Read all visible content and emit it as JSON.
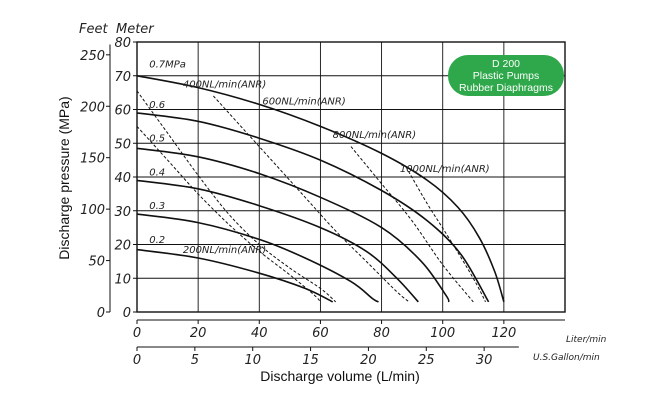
{
  "chart_data": {
    "type": "line",
    "xlabel": "Discharge volume (L/min)",
    "ylabel": "Discharge pressure (MPa)",
    "badge": {
      "lines": [
        "D 200",
        "Plastic Pumps",
        "Rubber Diaphragms"
      ],
      "color": "#2ea84a"
    },
    "axes": {
      "meter": {
        "title": "Meter",
        "ticks": [
          0,
          10,
          20,
          30,
          40,
          50,
          60,
          70,
          80
        ]
      },
      "feet": {
        "title": "Feet",
        "ticks": [
          0,
          50,
          100,
          150,
          200,
          250
        ]
      },
      "liter": {
        "unit": "Liter/min",
        "ticks": [
          0,
          20,
          40,
          60,
          80,
          100,
          120
        ]
      },
      "gallon": {
        "unit": "U.S.Gallon/min",
        "ticks": [
          0,
          5,
          10,
          15,
          20,
          25,
          30
        ]
      }
    },
    "xlim": [
      0,
      140
    ],
    "ylim": [
      0,
      80
    ],
    "grid": true,
    "pressure_curves": [
      {
        "label": "0.7MPa",
        "points": [
          [
            0,
            70
          ],
          [
            20,
            66.5
          ],
          [
            40,
            61.5
          ],
          [
            60,
            55
          ],
          [
            80,
            47
          ],
          [
            95,
            39
          ],
          [
            105,
            31
          ],
          [
            112,
            22
          ],
          [
            117,
            12
          ],
          [
            120,
            3
          ]
        ]
      },
      {
        "label": "0.6",
        "points": [
          [
            0,
            59
          ],
          [
            20,
            56.5
          ],
          [
            40,
            51.5
          ],
          [
            60,
            45
          ],
          [
            80,
            36
          ],
          [
            95,
            27
          ],
          [
            106,
            17
          ],
          [
            115,
            3
          ]
        ]
      },
      {
        "label": "0.5",
        "points": [
          [
            0,
            48.5
          ],
          [
            20,
            46
          ],
          [
            40,
            41
          ],
          [
            60,
            34
          ],
          [
            80,
            25
          ],
          [
            93,
            15
          ],
          [
            101,
            5
          ],
          [
            102,
            3
          ]
        ]
      },
      {
        "label": "0.4",
        "points": [
          [
            0,
            39
          ],
          [
            20,
            36.5
          ],
          [
            40,
            31.5
          ],
          [
            60,
            25
          ],
          [
            75,
            18
          ],
          [
            85,
            10
          ],
          [
            92,
            3
          ]
        ]
      },
      {
        "label": "0.3",
        "points": [
          [
            0,
            29
          ],
          [
            20,
            26.5
          ],
          [
            40,
            21.5
          ],
          [
            55,
            16
          ],
          [
            70,
            9
          ],
          [
            77,
            4
          ],
          [
            79,
            3
          ]
        ]
      },
      {
        "label": "0.2",
        "points": [
          [
            0,
            18.5
          ],
          [
            20,
            16
          ],
          [
            40,
            11.5
          ],
          [
            55,
            7
          ],
          [
            64,
            3
          ]
        ]
      }
    ],
    "air_curves": [
      {
        "label": "400NL/min(ANR)",
        "points": [
          [
            0,
            65.5
          ],
          [
            10,
            53
          ],
          [
            20,
            40.5
          ],
          [
            30,
            29
          ],
          [
            40,
            20
          ],
          [
            50,
            13
          ],
          [
            60,
            7
          ],
          [
            65,
            3
          ]
        ]
      },
      {
        "label": "600NL/min(ANR)",
        "points": [
          [
            25,
            64
          ],
          [
            35,
            54
          ],
          [
            45,
            44
          ],
          [
            55,
            34
          ],
          [
            65,
            24
          ],
          [
            75,
            15
          ],
          [
            85,
            6
          ],
          [
            89,
            3
          ]
        ]
      },
      {
        "label": "800NL/min(ANR)",
        "points": [
          [
            70,
            49
          ],
          [
            80,
            38
          ],
          [
            90,
            27
          ],
          [
            100,
            14
          ],
          [
            110,
            3
          ]
        ]
      },
      {
        "label": "1000NL/min(ANR)",
        "points": [
          [
            88,
            43
          ],
          [
            95,
            32
          ],
          [
            102,
            22
          ],
          [
            110,
            10
          ],
          [
            114,
            3
          ]
        ]
      },
      {
        "label": "200NL/min(ANR)",
        "points": [
          [
            0,
            55
          ],
          [
            10,
            45
          ],
          [
            20,
            35
          ],
          [
            30,
            26
          ],
          [
            40,
            18
          ],
          [
            50,
            11
          ],
          [
            58,
            5
          ],
          [
            60,
            3
          ]
        ]
      }
    ],
    "curve_labels": [
      {
        "text": "0.7MPa",
        "at": [
          4,
          72.5
        ]
      },
      {
        "text": "0.6",
        "at": [
          4,
          60.5
        ]
      },
      {
        "text": "0.5",
        "at": [
          4,
          50.5
        ]
      },
      {
        "text": "0.4",
        "at": [
          4,
          40.5
        ]
      },
      {
        "text": "0.3",
        "at": [
          4,
          30.5
        ]
      },
      {
        "text": "0.2",
        "at": [
          4,
          20.5
        ]
      },
      {
        "text": "400NL/min(ANR)",
        "at": [
          15,
          66.5
        ]
      },
      {
        "text": "600NL/min(ANR)",
        "at": [
          41,
          61.5
        ]
      },
      {
        "text": "800NL/min(ANR)",
        "at": [
          64,
          51.5
        ]
      },
      {
        "text": "1000NL/min(ANR)",
        "at": [
          86,
          41.5
        ]
      },
      {
        "text": "200NL/min(ANR)",
        "at": [
          15,
          17.5
        ]
      }
    ]
  }
}
